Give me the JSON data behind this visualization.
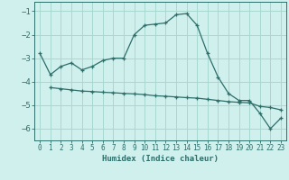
{
  "xlabel": "Humidex (Indice chaleur)",
  "ylabel": "",
  "bg_color": "#cff0ec",
  "grid_color": "#a8d8d0",
  "line_color": "#2d6e6a",
  "xlim": [
    -0.5,
    23.5
  ],
  "ylim": [
    -6.5,
    -0.6
  ],
  "yticks": [
    -6,
    -5,
    -4,
    -3,
    -2,
    -1
  ],
  "xticks": [
    0,
    1,
    2,
    3,
    4,
    5,
    6,
    7,
    8,
    9,
    10,
    11,
    12,
    13,
    14,
    15,
    16,
    17,
    18,
    19,
    20,
    21,
    22,
    23
  ],
  "curve1_x": [
    0,
    1,
    2,
    3,
    4,
    5,
    6,
    7,
    8,
    9,
    10,
    11,
    12,
    13,
    14,
    15,
    16,
    17,
    18,
    19,
    20,
    21,
    22,
    23
  ],
  "curve1_y": [
    -2.8,
    -3.7,
    -3.35,
    -3.2,
    -3.5,
    -3.35,
    -3.1,
    -3.0,
    -3.0,
    -2.0,
    -1.6,
    -1.55,
    -1.5,
    -1.15,
    -1.1,
    -1.6,
    -2.8,
    -3.8,
    -4.5,
    -4.8,
    -4.8,
    -5.35,
    -6.0,
    -5.55
  ],
  "curve2_x": [
    1,
    2,
    3,
    4,
    5,
    6,
    7,
    8,
    9,
    10,
    11,
    12,
    13,
    14,
    15,
    16,
    17,
    18,
    19,
    20,
    21,
    22,
    23
  ],
  "curve2_y": [
    -4.25,
    -4.3,
    -4.35,
    -4.4,
    -4.42,
    -4.45,
    -4.47,
    -4.5,
    -4.52,
    -4.55,
    -4.6,
    -4.62,
    -4.65,
    -4.68,
    -4.7,
    -4.75,
    -4.8,
    -4.85,
    -4.88,
    -4.9,
    -5.05,
    -5.1,
    -5.2
  ]
}
